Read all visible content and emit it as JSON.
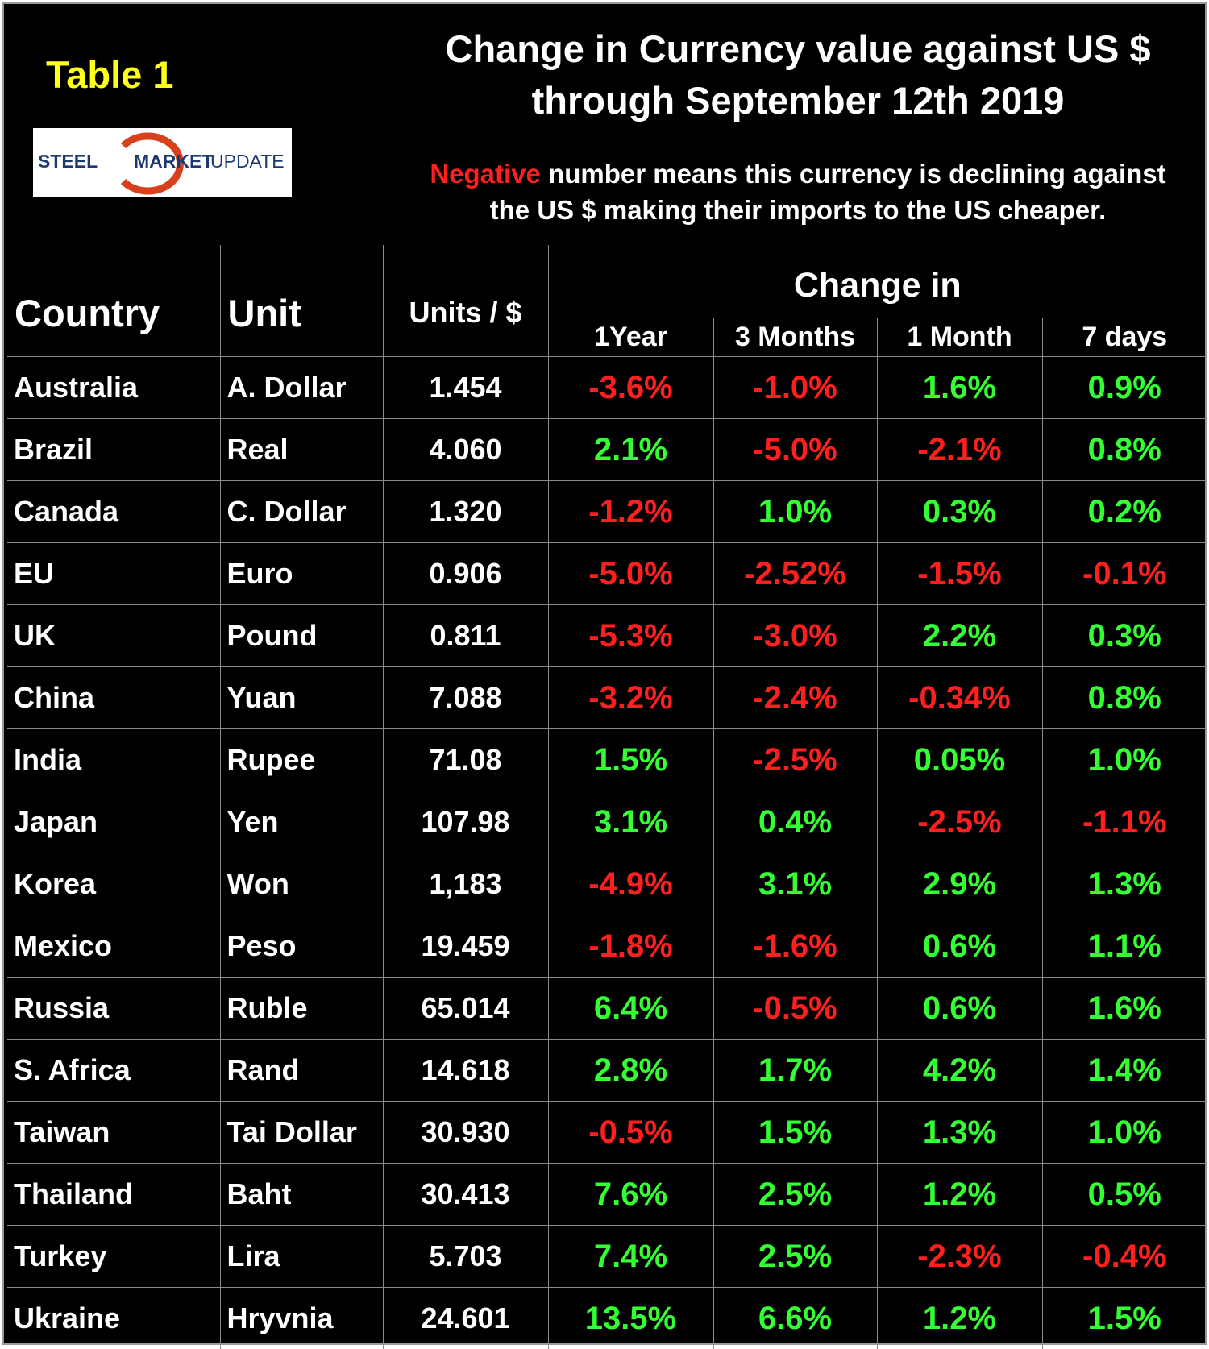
{
  "header": {
    "badge": "Table 1",
    "title_lines": [
      "Change in Currency value against US $",
      "through September 12th 2019"
    ]
  },
  "logo": {
    "words": [
      "STEEL",
      "MARKET",
      "UPDATE"
    ]
  },
  "note": {
    "highlight": "Negative",
    "text": "number means this currency is declining against",
    "text2": "the US $ making their imports to the US cheaper."
  },
  "table": {
    "columns": [
      "Country",
      "Unit",
      "Units / $"
    ],
    "group": "Change in",
    "subcolumns": [
      "1Year",
      "3 Months",
      "1 Month",
      "7 days"
    ],
    "rows": [
      [
        "Australia",
        "A. Dollar",
        "1.454",
        "-3.6%",
        "-1.0%",
        "1.6%",
        "0.9%"
      ],
      [
        "Brazil",
        "Real",
        "4.060",
        "2.1%",
        "-5.0%",
        "-2.1%",
        "0.8%"
      ],
      [
        "Canada",
        "C. Dollar",
        "1.320",
        "-1.2%",
        "1.0%",
        "0.3%",
        "0.2%"
      ],
      [
        "EU",
        "Euro",
        "0.906",
        "-5.0%",
        "-2.52%",
        "-1.5%",
        "-0.1%"
      ],
      [
        "UK",
        "Pound",
        "0.811",
        "-5.3%",
        "-3.0%",
        "2.2%",
        "0.3%"
      ],
      [
        "China",
        "Yuan",
        "7.088",
        "-3.2%",
        "-2.4%",
        "-0.34%",
        "0.8%"
      ],
      [
        "India",
        "Rupee",
        "71.08",
        "1.5%",
        "-2.5%",
        "0.05%",
        "1.0%"
      ],
      [
        "Japan",
        "Yen",
        "107.98",
        "3.1%",
        "0.4%",
        "-2.5%",
        "-1.1%"
      ],
      [
        "Korea",
        "Won",
        "1,183",
        "-4.9%",
        "3.1%",
        "2.9%",
        "1.3%"
      ],
      [
        "Mexico",
        "Peso",
        "19.459",
        "-1.8%",
        "-1.6%",
        "0.6%",
        "1.1%"
      ],
      [
        "Russia",
        "Ruble",
        "65.014",
        "6.4%",
        "-0.5%",
        "0.6%",
        "1.6%"
      ],
      [
        "S. Africa",
        "Rand",
        "14.618",
        "2.8%",
        "1.7%",
        "4.2%",
        "1.4%"
      ],
      [
        "Taiwan",
        "Tai Dollar",
        "30.930",
        "-0.5%",
        "1.5%",
        "1.3%",
        "1.0%"
      ],
      [
        "Thailand",
        "Baht",
        "30.413",
        "7.6%",
        "2.5%",
        "1.2%",
        "0.5%"
      ],
      [
        "Turkey",
        "Lira",
        "5.703",
        "7.4%",
        "2.5%",
        "-2.3%",
        "-0.4%"
      ],
      [
        "Ukraine",
        "Hryvnia",
        "24.601",
        "13.5%",
        "6.6%",
        "1.2%",
        "1.5%"
      ]
    ]
  }
}
